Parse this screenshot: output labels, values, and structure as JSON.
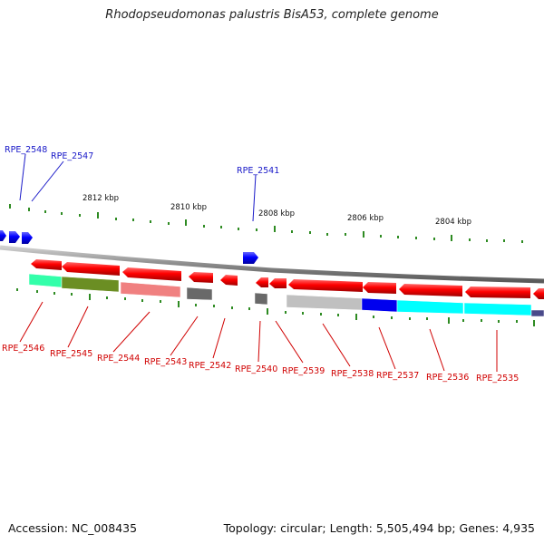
{
  "title": "Rhodopseudomonas palustris BisA53, complete genome",
  "footer": {
    "accession": "Accession: NC_008435",
    "summary": "Topology: circular; Length: 5,505,494 bp; Genes: 4,935"
  },
  "scale_labels": [
    "2812 kbp",
    "2810 kbp",
    "2808 kbp",
    "2806 kbp",
    "2804 kbp"
  ],
  "genes_top": [
    "RPE_2548",
    "RPE_2547",
    "RPE_2541"
  ],
  "genes_bottom": [
    "RPE_2546",
    "RPE_2545",
    "RPE_2544",
    "RPE_2543",
    "RPE_2542",
    "RPE_2540",
    "RPE_2539",
    "RPE_2538",
    "RPE_2537",
    "RPE_2536",
    "RPE_2535"
  ],
  "colors": {
    "forward_strand": "#0000ff",
    "reverse_strand": "#ff0000",
    "backbone": "#888888",
    "ticks": "#228b22",
    "cog_categories": [
      "#33ffaa",
      "#6b8e23",
      "#f08080",
      "#696969",
      "#c0c0c0",
      "#0000ee",
      "#00ffff",
      "#4a4a8a"
    ]
  }
}
